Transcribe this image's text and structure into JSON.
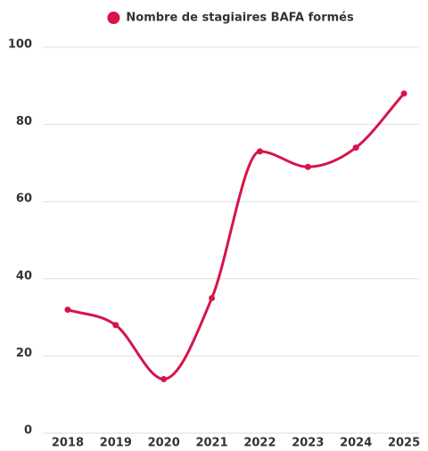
{
  "chart_data": {
    "type": "line",
    "categories": [
      "2018",
      "2019",
      "2020",
      "2021",
      "2022",
      "2023",
      "2024",
      "2025"
    ],
    "series": [
      {
        "name": "Nombre de stagiaires BAFA formés",
        "color": "#d6154a",
        "values": [
          32,
          28,
          14,
          35,
          73,
          69,
          74,
          88
        ]
      }
    ],
    "ylim": [
      0,
      100
    ],
    "yticks": [
      0,
      20,
      40,
      60,
      80,
      100
    ],
    "grid": true,
    "legend": "top"
  }
}
